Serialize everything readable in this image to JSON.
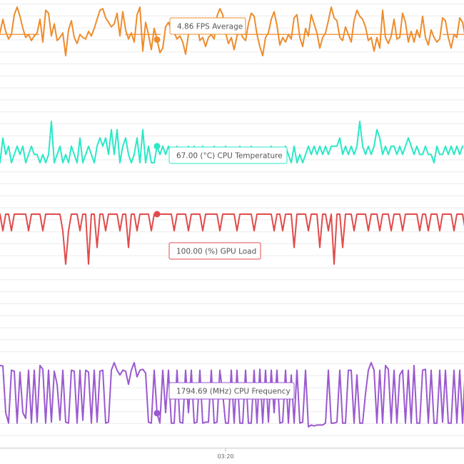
{
  "chart_data": {
    "type": "line",
    "title": "",
    "xlabel": "",
    "ylabel": "",
    "grid": true,
    "x_ticks": [
      {
        "label": "03:20",
        "index": 80
      }
    ],
    "hover_index": 56,
    "series": [
      {
        "name": "FPS Average",
        "color": "#ee8c2c",
        "reference_line": true,
        "tooltip": "4.86 FPS Average",
        "values": [
          5.0,
          5.3,
          6.2,
          5.4,
          4.9,
          5.2,
          6.5,
          7.0,
          6.4,
          5.6,
          5.0,
          5.2,
          4.8,
          5.1,
          5.3,
          6.2,
          4.7,
          6.8,
          6.6,
          5.1,
          5.9,
          4.8,
          5.0,
          5.3,
          3.8,
          5.5,
          6.1,
          5.0,
          4.6,
          5.2,
          5.0,
          4.9,
          5.4,
          5.1,
          5.6,
          6.2,
          6.8,
          6.9,
          6.3,
          6.0,
          5.7,
          5.9,
          6.6,
          5.1,
          6.7,
          5.5,
          4.9,
          5.3,
          4.7,
          6.5,
          7.0,
          4.1,
          6.0,
          5.2,
          4.2,
          5.6,
          4.86,
          4.0,
          4.3,
          5.7,
          6.0,
          5.5,
          5.3,
          4.9,
          5.1,
          4.7,
          3.9,
          5.2,
          5.8,
          6.2,
          5.9,
          4.8,
          5.0,
          4.4,
          5.0,
          5.2,
          4.9,
          6.4,
          6.9,
          6.5,
          5.3,
          4.6,
          5.0,
          4.2,
          5.1,
          5.5,
          5.0,
          4.8,
          5.9,
          6.6,
          6.4,
          5.2,
          4.4,
          3.8,
          5.0,
          5.3,
          6.2,
          6.7,
          5.8,
          4.5,
          5.0,
          4.7,
          5.2,
          4.9,
          6.3,
          6.5,
          5.0,
          4.4,
          5.6,
          5.1,
          6.5,
          5.9,
          5.3,
          4.3,
          5.0,
          5.3,
          6.1,
          7.0,
          6.3,
          6.1,
          5.0,
          4.8,
          5.7,
          5.2,
          4.7,
          6.1,
          6.8,
          6.4,
          6.2,
          5.7,
          4.8,
          5.0,
          4.1,
          5.0,
          4.3,
          6.8,
          5.0,
          4.6,
          5.1,
          6.2,
          4.9,
          5.0,
          6.6,
          6.0,
          4.7,
          5.4,
          4.7,
          5.5,
          5.0,
          6.4,
          5.0,
          4.5,
          5.5,
          5.0,
          4.7,
          4.9,
          6.3,
          6.1,
          5.0,
          4.3,
          5.2,
          5.0,
          6.3,
          6.0,
          5.0
        ]
      },
      {
        "name": "CPU Temperature",
        "color": "#2be8c7",
        "reference_line": false,
        "tooltip": "67.00 (°C) CPU Temperature",
        "values": [
          67.0,
          66.0,
          67.5,
          66.5,
          67.0,
          66.0,
          66.5,
          67.0,
          66.5,
          67.0,
          66.0,
          66.5,
          67.0,
          66.5,
          66.5,
          66.0,
          66.5,
          66.0,
          66.5,
          68.5,
          66.0,
          66.5,
          67.0,
          66.0,
          66.5,
          66.0,
          67.0,
          66.5,
          66.0,
          67.5,
          66.0,
          66.5,
          67.0,
          66.5,
          66.0,
          67.0,
          67.5,
          67.0,
          67.5,
          66.5,
          68.0,
          66.5,
          68.0,
          66.0,
          67.0,
          67.5,
          66.5,
          66.0,
          66.5,
          67.5,
          66.0,
          68.0,
          66.0,
          67.0,
          66.0,
          66.0,
          67.0,
          66.5,
          67.0,
          66.5,
          67.0,
          66.5,
          66.5,
          67.0,
          66.0,
          66.5,
          66.0,
          67.0,
          66.5,
          67.0,
          66.0,
          66.5,
          67.0,
          66.0,
          66.5,
          66.0,
          67.0,
          66.5,
          66.0,
          66.0,
          67.0,
          66.5,
          66.0,
          66.5,
          66.0,
          67.0,
          66.5,
          66.0,
          66.5,
          67.0,
          66.5,
          66.5,
          66.0,
          66.5,
          66.0,
          66.5,
          67.0,
          66.0,
          66.5,
          66.0,
          66.5,
          67.0,
          66.5,
          66.0,
          67.0,
          66.0,
          66.5,
          66.0,
          66.5,
          67.0,
          66.5,
          67.0,
          66.5,
          67.0,
          66.5,
          67.0,
          66.5,
          67.0,
          67.0,
          67.0,
          67.5,
          66.5,
          67.0,
          66.5,
          67.0,
          66.5,
          67.0,
          68.5,
          67.0,
          66.5,
          67.0,
          66.5,
          67.0,
          68.0,
          67.5,
          66.5,
          67.0,
          66.5,
          67.0,
          67.0,
          66.5,
          67.0,
          66.5,
          67.0,
          67.5,
          67.0,
          66.5,
          67.0,
          66.5,
          66.5,
          67.0,
          66.5,
          66.5,
          66.0,
          67.0,
          66.5,
          66.5,
          67.0,
          66.5,
          67.0,
          66.5,
          67.0,
          66.5,
          67.0
        ]
      },
      {
        "name": "GPU Load",
        "color": "#e14b4b",
        "reference_line": false,
        "tooltip": "100.00 (%) GPU Load",
        "values": [
          100.0,
          100.0,
          99.5,
          100.0,
          100.0,
          99.5,
          100.0,
          100.0,
          100.0,
          100.0,
          100.0,
          99.5,
          100.0,
          100.0,
          100.0,
          100.0,
          99.5,
          100.0,
          100.0,
          100.0,
          100.0,
          100.0,
          100.0,
          99.5,
          98.5,
          99.5,
          100.0,
          100.0,
          100.0,
          99.5,
          100.0,
          100.0,
          98.5,
          100.0,
          100.0,
          99.0,
          100.0,
          100.0,
          99.5,
          100.0,
          100.0,
          100.0,
          100.0,
          99.5,
          100.0,
          100.0,
          99.0,
          100.0,
          100.0,
          99.5,
          100.0,
          100.0,
          100.0,
          100.0,
          99.5,
          100.0,
          100.0,
          100.0,
          100.0,
          100.0,
          100.0,
          100.0,
          99.5,
          100.0,
          100.0,
          100.0,
          100.0,
          99.5,
          100.0,
          100.0,
          100.0,
          100.0,
          99.5,
          100.0,
          100.0,
          100.0,
          100.0,
          100.0,
          99.5,
          100.0,
          100.0,
          100.0,
          100.0,
          100.0,
          99.5,
          100.0,
          100.0,
          100.0,
          100.0,
          100.0,
          99.5,
          100.0,
          100.0,
          100.0,
          100.0,
          100.0,
          100.0,
          99.5,
          100.0,
          100.0,
          99.5,
          100.0,
          100.0,
          100.0,
          99.0,
          100.0,
          100.0,
          100.0,
          100.0,
          99.5,
          100.0,
          100.0,
          100.0,
          99.0,
          100.0,
          100.0,
          99.5,
          100.0,
          98.5,
          100.0,
          100.0,
          99.0,
          100.0,
          100.0,
          100.0,
          99.5,
          100.0,
          100.0,
          100.0,
          100.0,
          99.5,
          100.0,
          100.0,
          100.0,
          99.5,
          100.0,
          100.0,
          100.0,
          99.5,
          100.0,
          100.0,
          100.0,
          99.5,
          100.0,
          100.0,
          100.0,
          100.0,
          100.0,
          99.5,
          100.0,
          100.0,
          99.5,
          100.0,
          100.0,
          100.0,
          99.5,
          100.0,
          100.0,
          100.0,
          100.0,
          99.5,
          100.0,
          100.0,
          100.0,
          99.5,
          100.0
        ]
      },
      {
        "name": "CPU Frequency",
        "color": "#9b59d0",
        "reference_line": false,
        "tooltip": "1794.69 (MHz) CPU Frequency",
        "values": [
          2290,
          2300,
          2295,
          1800,
          1690,
          2250,
          2240,
          1690,
          2230,
          1800,
          1740,
          2250,
          1690,
          2250,
          1700,
          2300,
          2260,
          1690,
          2250,
          1700,
          2240,
          2100,
          1720,
          2250,
          1700,
          1690,
          2250,
          2240,
          1690,
          2250,
          1720,
          2250,
          2230,
          1690,
          2250,
          1700,
          2240,
          2250,
          1690,
          1700,
          2250,
          2330,
          2250,
          2200,
          2250,
          2240,
          2100,
          2250,
          2330,
          2180,
          2250,
          2260,
          2220,
          1700,
          1690,
          2250,
          1795,
          1690,
          2250,
          1800,
          2250,
          1690,
          1690,
          2250,
          1700,
          1690,
          2250,
          1800,
          2250,
          1690,
          1700,
          2250,
          1690,
          1700,
          1700,
          2250,
          1690,
          1700,
          2250,
          2000,
          1690,
          1690,
          2250,
          1690,
          2250,
          1690,
          1690,
          2250,
          1690,
          1690,
          2250,
          1690,
          2260,
          1690,
          2250,
          1700,
          2250,
          1800,
          2250,
          1690,
          1700,
          2250,
          1690,
          2200,
          1690,
          2250,
          1690,
          1700,
          2250,
          1650,
          1670,
          1660,
          1670,
          1670,
          1670,
          1690,
          2250,
          1690,
          1690,
          1700,
          2250,
          1690,
          1690,
          2250,
          2250,
          1690,
          2200,
          1690,
          1690,
          2000,
          2250,
          2330,
          2250,
          1690,
          2250,
          1690,
          2300,
          2260,
          1690,
          2250,
          1690,
          2200,
          2250,
          1690,
          2250,
          1690,
          2300,
          1690,
          1690,
          2250,
          2260,
          1690,
          2250,
          1690,
          1690,
          2250,
          1700,
          2250,
          1690,
          1690,
          2250,
          1690,
          2250,
          1690,
          2300,
          2290
        ]
      }
    ]
  }
}
